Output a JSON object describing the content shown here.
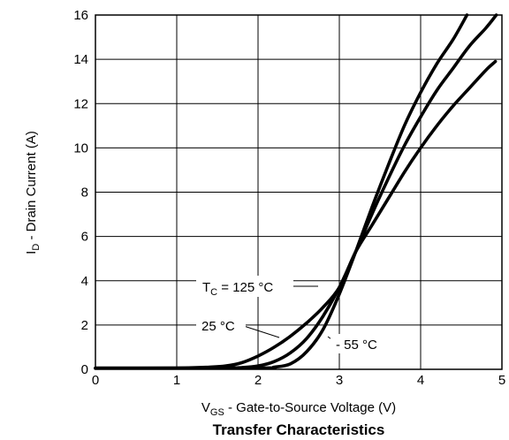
{
  "chart_data": {
    "type": "line",
    "title": "Transfer Characteristics",
    "xlabel": {
      "main": "V",
      "sub": "GS",
      "rest": " - Gate-to-Source Voltage (V)"
    },
    "ylabel": {
      "main": "I",
      "sub": "D",
      "rest": " - Drain Current (A)"
    },
    "xlim": [
      0,
      5
    ],
    "ylim": [
      0,
      16
    ],
    "x_ticks": [
      "0",
      "1",
      "2",
      "3",
      "4",
      "5"
    ],
    "y_ticks": [
      "0",
      "2",
      "4",
      "6",
      "8",
      "10",
      "12",
      "14",
      "16"
    ],
    "grid": true,
    "series": [
      {
        "name": {
          "main": "T",
          "sub": "C",
          "rest": " = 125 °C"
        },
        "points": [
          [
            0,
            0.05
          ],
          [
            1.0,
            0.06
          ],
          [
            1.4,
            0.1
          ],
          [
            1.6,
            0.15
          ],
          [
            1.8,
            0.3
          ],
          [
            2.0,
            0.6
          ],
          [
            2.2,
            1.0
          ],
          [
            2.4,
            1.5
          ],
          [
            2.6,
            2.1
          ],
          [
            2.8,
            2.8
          ],
          [
            3.0,
            3.7
          ],
          [
            3.2,
            5.3
          ],
          [
            3.4,
            6.5
          ],
          [
            3.6,
            7.7
          ],
          [
            3.8,
            8.9
          ],
          [
            4.0,
            10.0
          ],
          [
            4.2,
            11.0
          ],
          [
            4.4,
            11.9
          ],
          [
            4.6,
            12.7
          ],
          [
            4.8,
            13.5
          ],
          [
            4.92,
            13.9
          ]
        ]
      },
      {
        "name": {
          "main": "",
          "sub": "",
          "rest": "25 °C"
        },
        "points": [
          [
            0,
            0.05
          ],
          [
            1.5,
            0.06
          ],
          [
            1.8,
            0.08
          ],
          [
            2.0,
            0.15
          ],
          [
            2.2,
            0.35
          ],
          [
            2.4,
            0.75
          ],
          [
            2.6,
            1.4
          ],
          [
            2.8,
            2.4
          ],
          [
            3.0,
            3.7
          ],
          [
            3.2,
            5.3
          ],
          [
            3.4,
            7.0
          ],
          [
            3.6,
            8.6
          ],
          [
            3.8,
            10.1
          ],
          [
            4.0,
            11.4
          ],
          [
            4.2,
            12.6
          ],
          [
            4.4,
            13.6
          ],
          [
            4.6,
            14.6
          ],
          [
            4.8,
            15.4
          ],
          [
            4.93,
            16.0
          ]
        ]
      },
      {
        "name": {
          "main": "",
          "sub": "",
          "rest": "- 55 °C"
        },
        "points": [
          [
            0,
            0.05
          ],
          [
            2.0,
            0.06
          ],
          [
            2.2,
            0.1
          ],
          [
            2.4,
            0.25
          ],
          [
            2.6,
            0.8
          ],
          [
            2.8,
            1.8
          ],
          [
            3.0,
            3.4
          ],
          [
            3.2,
            5.3
          ],
          [
            3.4,
            7.3
          ],
          [
            3.6,
            9.2
          ],
          [
            3.8,
            11.0
          ],
          [
            4.0,
            12.5
          ],
          [
            4.2,
            13.8
          ],
          [
            4.4,
            14.9
          ],
          [
            4.57,
            16.0
          ]
        ]
      }
    ]
  }
}
